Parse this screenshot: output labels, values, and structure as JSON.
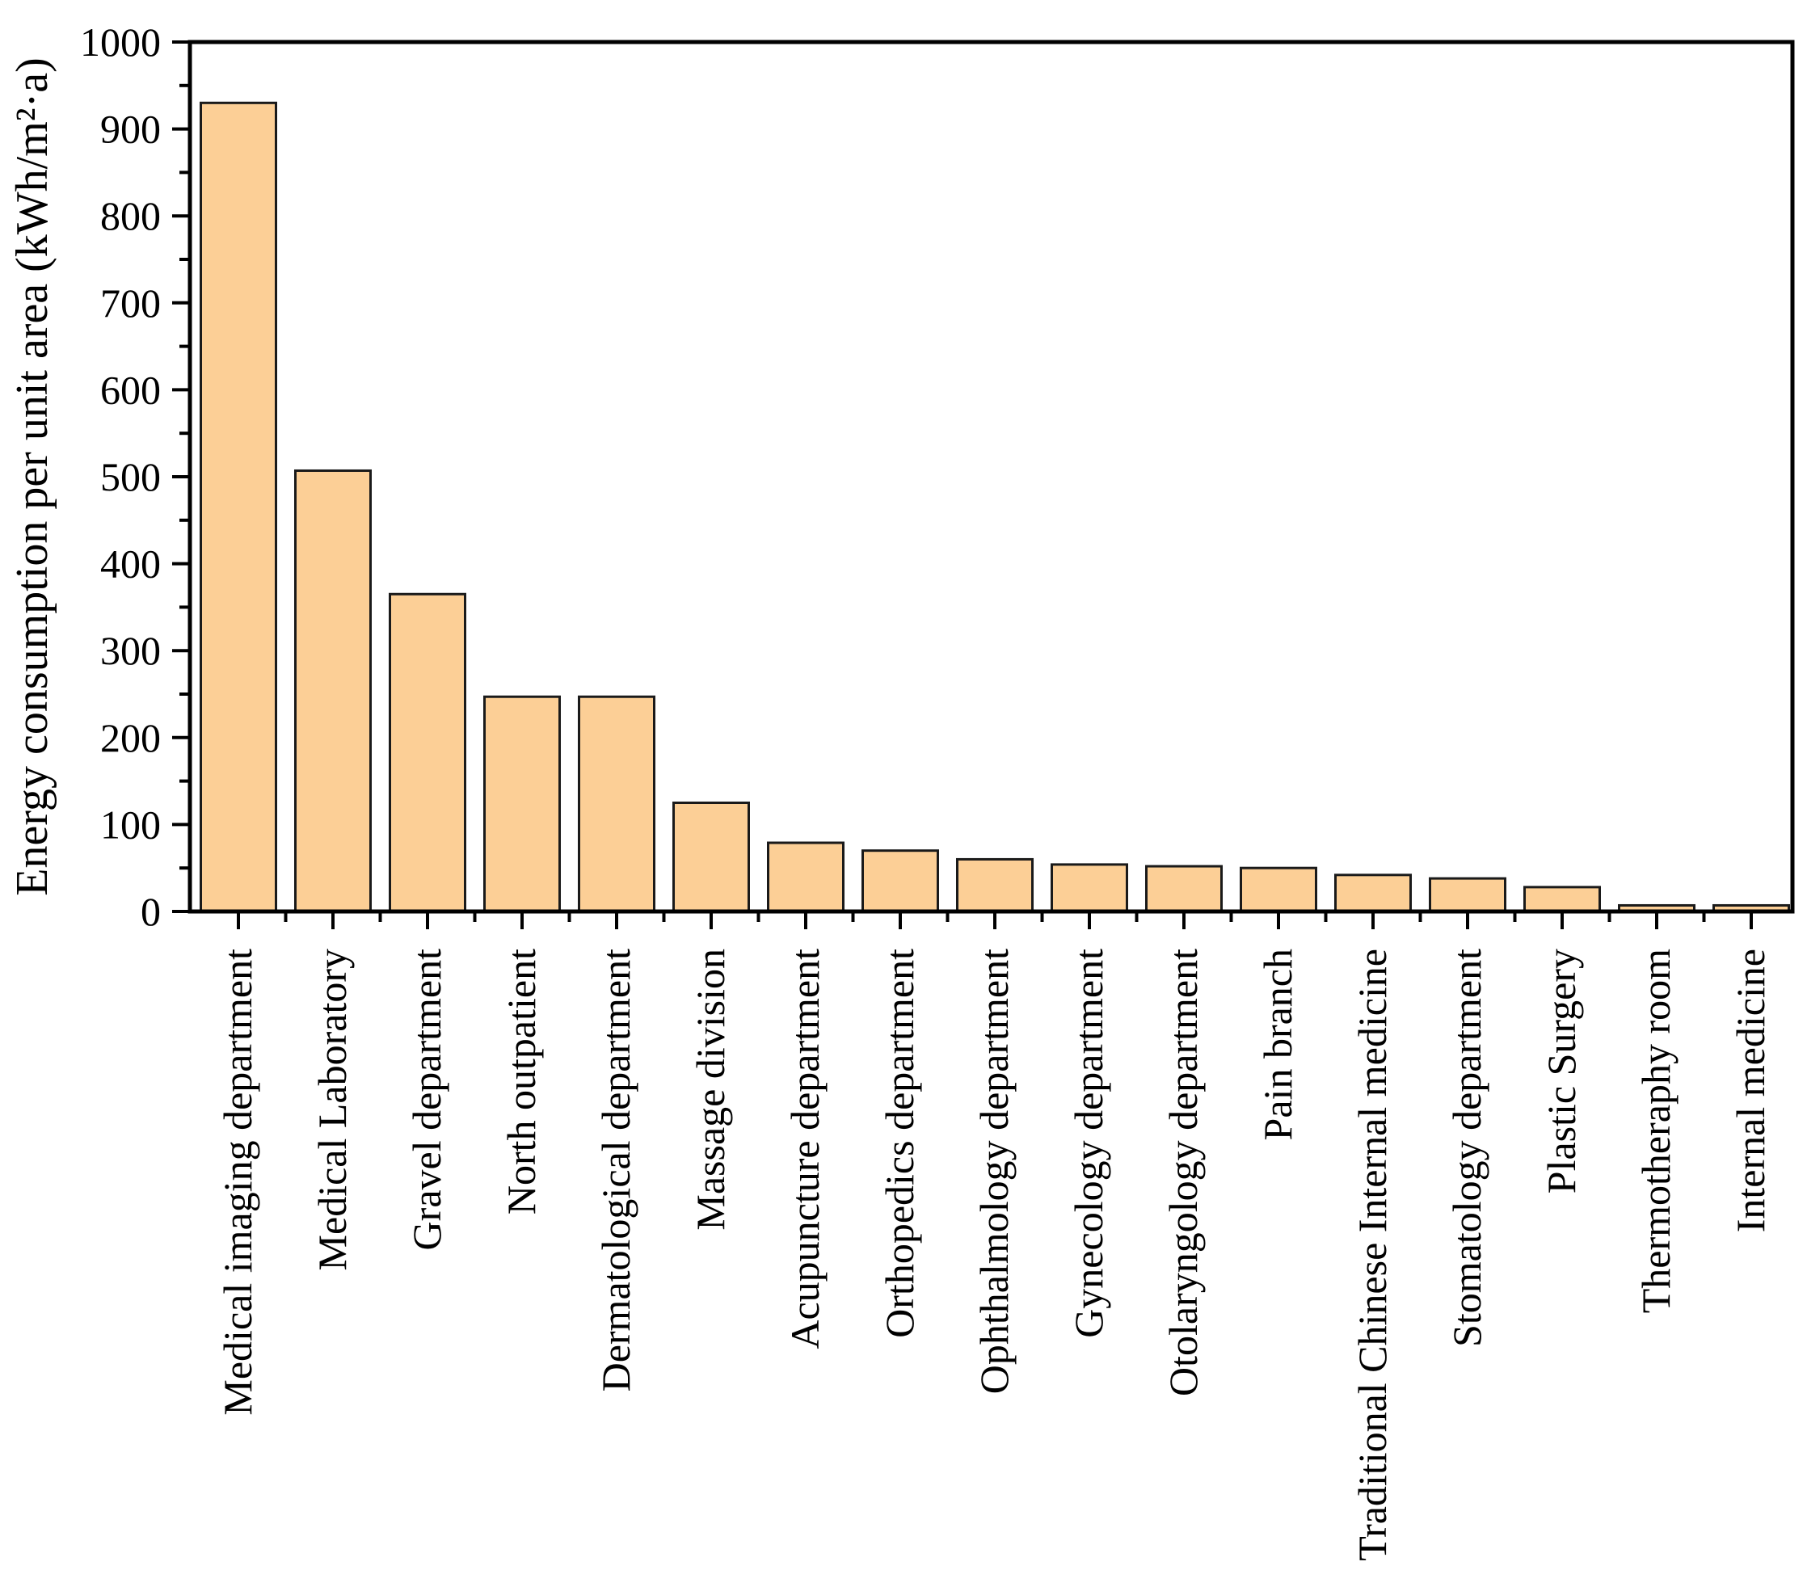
{
  "figure": {
    "background": "#ffffff",
    "bar_fill": "#FCCF96",
    "bar_stroke": "#1a1a1a",
    "axis_color": "#000000"
  },
  "chart_data": {
    "type": "bar",
    "title": "",
    "xlabel": "",
    "ylabel": "Energy consumption per unit area (kWh/m²·a)",
    "ylim": [
      0,
      1000
    ],
    "y_major_tick_labels": [
      "0",
      "100",
      "200",
      "300",
      "400",
      "500",
      "600",
      "700",
      "800",
      "900",
      "1000"
    ],
    "y_major_step": 100,
    "y_minor_step": 50,
    "grid": false,
    "legend": false,
    "frame_box": true,
    "categories": [
      "Medical imaging department",
      "Medical Laboratory",
      "Gravel department",
      "North outpatient",
      "Dermatological department",
      "Massage division",
      "Acupuncture department",
      "Orthopedics department",
      "Ophthalmology department",
      "Gynecology department",
      "Otolaryngology department",
      "Pain branch",
      "Traditional Chinese Internal medicine",
      "Stomatology department",
      "Plastic Surgery",
      "Thermotheraphy room",
      "Internal medicine"
    ],
    "values": [
      930,
      507,
      365,
      247,
      247,
      125,
      79,
      70,
      60,
      54,
      52,
      50,
      42,
      38,
      28,
      7,
      7
    ]
  }
}
